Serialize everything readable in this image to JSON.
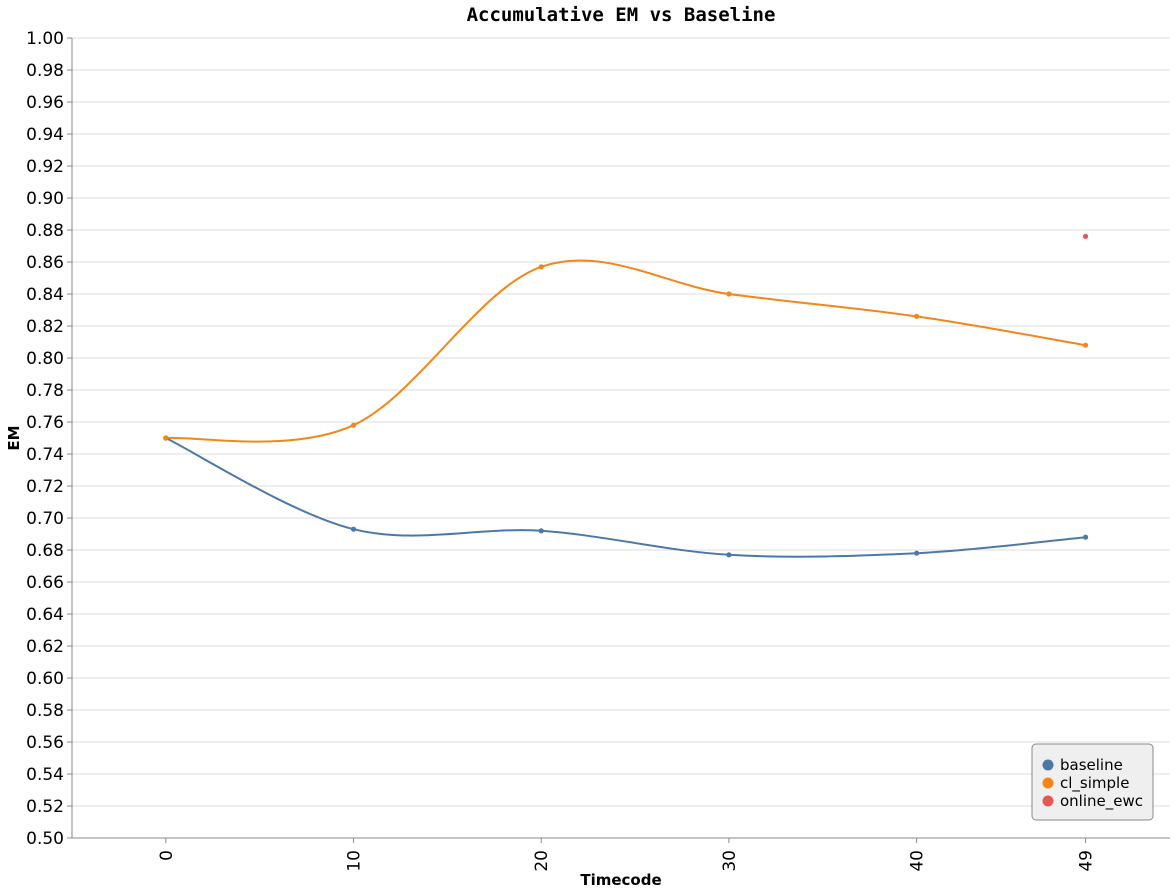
{
  "chart_data": {
    "type": "line",
    "title": "Accumulative EM vs Baseline",
    "xlabel": "Timecode",
    "ylabel": "EM",
    "x": [
      0,
      10,
      20,
      30,
      40,
      49
    ],
    "x_ticks": [
      "0",
      "10",
      "20",
      "30",
      "40",
      "49"
    ],
    "xlim": [
      -5,
      53.5
    ],
    "ylim": [
      0.5,
      1.0
    ],
    "y_ticks": [
      "0.50",
      "0.52",
      "0.54",
      "0.56",
      "0.58",
      "0.60",
      "0.62",
      "0.64",
      "0.66",
      "0.68",
      "0.70",
      "0.72",
      "0.74",
      "0.76",
      "0.78",
      "0.80",
      "0.82",
      "0.84",
      "0.86",
      "0.88",
      "0.90",
      "0.92",
      "0.94",
      "0.96",
      "0.98",
      "1.00"
    ],
    "grid": true,
    "legend_position": "bottom-right",
    "series": [
      {
        "name": "baseline",
        "color": "#4c78a8",
        "x": [
          0,
          10,
          20,
          30,
          40,
          49
        ],
        "values": [
          0.75,
          0.693,
          0.692,
          0.677,
          0.678,
          0.688
        ]
      },
      {
        "name": "cl_simple",
        "color": "#f58518",
        "x": [
          0,
          10,
          20,
          30,
          40,
          49
        ],
        "values": [
          0.75,
          0.758,
          0.857,
          0.84,
          0.826,
          0.808
        ]
      },
      {
        "name": "online_ewc",
        "color": "#e45756",
        "x": [
          49
        ],
        "values": [
          0.876
        ]
      }
    ]
  }
}
